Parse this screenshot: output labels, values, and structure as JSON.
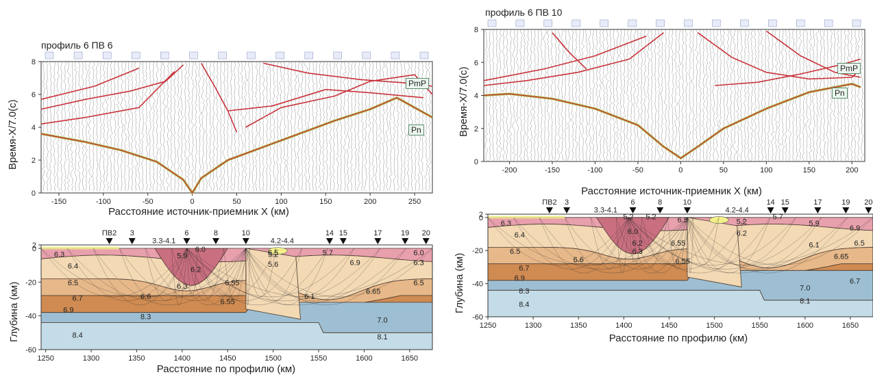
{
  "figure": {
    "left_time": {
      "title": "профиль 6  ПВ 6",
      "xlabel": "Расстояние источник-приемник X (км)",
      "ylabel": "Время-X/7.0(с)",
      "phases": [
        "PmP",
        "Pn"
      ]
    },
    "right_time": {
      "title": "профиль 6  ПВ 10",
      "xlabel": "Расстояние источник-приемник X (км)",
      "ylabel": "Время-X/7.0(с)",
      "phases": [
        "PmP",
        "Pn"
      ]
    },
    "left_depth": {
      "xlabel": "Расстояние по профилю (км)",
      "ylabel": "Глубина (км)"
    },
    "right_depth": {
      "xlabel": "Расстояние по профилю (км)",
      "ylabel": "Глубина (км)"
    }
  },
  "colors": {
    "upper_crust_pink": "#e8a0ad",
    "dark_pink": "#c96f80",
    "light_tan": "#f3d9b4",
    "tan": "#e7b889",
    "brown": "#cf8b52",
    "mantle_blue": "#9ebfd3",
    "mantle_light": "#c4dce8",
    "sediment_yellow": "#f3f08a",
    "traveltime_red": "#c8323a",
    "first_arrival_green": "#a8b43c"
  },
  "chart_data": [
    {
      "type": "line",
      "title": "профиль 6  ПВ 6",
      "xlabel": "Расстояние источник-приемник X (км)",
      "ylabel": "Время-X/7.0(с)",
      "xlim": [
        -170,
        270
      ],
      "ylim": [
        0,
        8
      ],
      "xticks": [
        -150,
        -100,
        -50,
        0,
        50,
        100,
        150,
        200,
        250
      ],
      "yticks": [
        0,
        2,
        4,
        6,
        8
      ],
      "annotations": [
        "PmP",
        "Pn"
      ],
      "series": [
        {
          "name": "Pn",
          "x": [
            -170,
            -120,
            -80,
            -40,
            -10,
            0,
            10,
            40,
            80,
            120,
            160,
            200,
            230,
            270
          ],
          "y": [
            3.6,
            3.1,
            2.6,
            1.9,
            0.8,
            0.0,
            0.9,
            2.0,
            2.8,
            3.6,
            4.4,
            5.1,
            5.8,
            4.6
          ]
        },
        {
          "x": [
            -170,
            -120,
            -70,
            -30,
            -10
          ],
          "y": [
            5.1,
            5.7,
            6.2,
            6.8,
            7.8
          ]
        },
        {
          "x": [
            -170,
            -120,
            -60,
            -20
          ],
          "y": [
            4.2,
            4.6,
            5.2,
            7.4
          ]
        },
        {
          "x": [
            -170,
            -110,
            -60
          ],
          "y": [
            5.7,
            6.5,
            7.6
          ]
        },
        {
          "x": [
            10,
            25,
            40,
            50
          ],
          "y": [
            7.9,
            6.5,
            5.0,
            3.7
          ]
        },
        {
          "x": [
            40,
            90,
            150,
            200,
            260
          ],
          "y": [
            5.0,
            5.3,
            6.3,
            6.1,
            5.8
          ]
        },
        {
          "x": [
            60,
            100,
            160,
            200,
            250,
            270
          ],
          "y": [
            4.0,
            5.2,
            5.9,
            6.8,
            7.2,
            6.0
          ]
        },
        {
          "x": [
            80,
            130,
            190,
            240,
            270
          ],
          "y": [
            7.9,
            7.3,
            6.9,
            6.7,
            6.5
          ]
        }
      ]
    },
    {
      "type": "line",
      "title": "профиль 6  ПВ 10",
      "xlabel": "Расстояние источник-приемник X (км)",
      "ylabel": "Время-X/7.0(с)",
      "xlim": [
        -230,
        215
      ],
      "ylim": [
        0,
        8
      ],
      "xticks": [
        -200,
        -150,
        -100,
        -50,
        0,
        50,
        100,
        150,
        200
      ],
      "yticks": [
        0,
        2,
        4,
        6,
        8
      ],
      "annotations": [
        "PmP",
        "Pn"
      ],
      "series": [
        {
          "name": "Pn",
          "x": [
            -230,
            -200,
            -150,
            -100,
            -50,
            -20,
            0,
            20,
            50,
            100,
            150,
            200,
            210
          ],
          "y": [
            4.0,
            4.1,
            3.8,
            3.2,
            2.2,
            0.9,
            0.2,
            0.9,
            2.0,
            3.2,
            4.2,
            4.7,
            4.5
          ]
        },
        {
          "x": [
            -230,
            -180,
            -120,
            -60,
            -20
          ],
          "y": [
            4.6,
            4.9,
            5.4,
            6.2,
            7.8
          ]
        },
        {
          "x": [
            -230,
            -160,
            -100,
            -40
          ],
          "y": [
            4.9,
            5.6,
            6.4,
            7.6
          ]
        },
        {
          "x": [
            20,
            60,
            100,
            150,
            200,
            210
          ],
          "y": [
            7.8,
            6.3,
            5.4,
            5.0,
            5.1,
            5.6
          ]
        },
        {
          "x": [
            40,
            90,
            140,
            190,
            210
          ],
          "y": [
            4.6,
            4.8,
            5.3,
            5.9,
            6.2
          ]
        },
        {
          "x": [
            100,
            140,
            180,
            210
          ],
          "y": [
            7.9,
            6.4,
            5.4,
            5.1
          ]
        },
        {
          "x": [
            -150,
            -130,
            -110
          ],
          "y": [
            7.8,
            6.6,
            5.6
          ]
        }
      ]
    },
    {
      "type": "area",
      "xlabel": "Расстояние по профилю (км)",
      "ylabel": "Глубина (км)",
      "xlim": [
        1245,
        1675
      ],
      "ylim": [
        -60,
        2
      ],
      "xticks": [
        1250,
        1300,
        1350,
        1400,
        1450,
        1500,
        1550,
        1600,
        1650
      ],
      "yticks": [
        -60,
        -40,
        -20,
        0,
        2
      ],
      "stations": [
        "ПВ2",
        "3",
        "6",
        "8",
        "10",
        "14",
        "15",
        "17",
        "19",
        "20"
      ],
      "station_x": [
        1320,
        1345,
        1405,
        1437,
        1470,
        1562,
        1577,
        1615,
        1645,
        1668
      ],
      "value_labels": [
        "3.3-4.1",
        "4.2-4.4",
        "6.3",
        "6.4",
        "6.5",
        "5.9",
        "6.0",
        "6.2",
        "6.3",
        "6.55",
        "6.55",
        "6.6",
        "6.7",
        "6.9",
        "8.3",
        "8.4",
        "5.2",
        "5.6",
        "5.7",
        "6.9",
        "6.3",
        "6.0",
        "6.5",
        "6.1",
        "6.65",
        "7.0",
        "8.1",
        "6.5"
      ]
    },
    {
      "type": "area",
      "xlabel": "Расстояние по профилю (км)",
      "ylabel": "Глубина (км)",
      "xlim": [
        1250,
        1675
      ],
      "ylim": [
        -60,
        2
      ],
      "xticks": [
        1250,
        1300,
        1350,
        1400,
        1450,
        1500,
        1550,
        1600,
        1650
      ],
      "yticks": [
        -60,
        -40,
        -20,
        0,
        2
      ],
      "stations": [
        "ПВ2",
        "3",
        "6",
        "8",
        "10",
        "14",
        "15",
        "17",
        "19",
        "20"
      ],
      "station_x": [
        1318,
        1337,
        1410,
        1440,
        1470,
        1562,
        1578,
        1614,
        1645,
        1670
      ],
      "value_labels": [
        "3.3-4.1",
        "4.2-4.4",
        "6.3",
        "6.4",
        "6.5",
        "5.2",
        "5.2",
        "6.0",
        "6.2",
        "6.3",
        "6.5",
        "6.55",
        "6.55",
        "6.6",
        "6.7",
        "6.9",
        "8.3",
        "8.4",
        "5.2",
        "5.7",
        "5.9",
        "6.9",
        "6.2",
        "6.1",
        "6.5",
        "6.65",
        "7.0",
        "8.1",
        "6.7"
      ]
    }
  ]
}
